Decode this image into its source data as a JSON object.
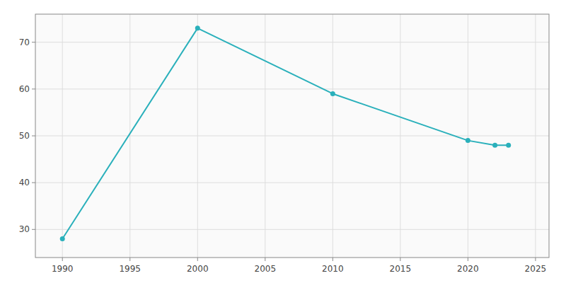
{
  "chart_data": {
    "type": "line",
    "x": [
      1990,
      2000,
      2010,
      2020,
      2022,
      2023
    ],
    "values": [
      28,
      73,
      59,
      49,
      48,
      48
    ],
    "color": "#2ab0bb",
    "marker": "circle",
    "xlim": [
      1988,
      2026
    ],
    "ylim": [
      24,
      76
    ],
    "xticks": [
      1990,
      1995,
      2000,
      2005,
      2010,
      2015,
      2020,
      2025
    ],
    "yticks": [
      30,
      40,
      50,
      60,
      70
    ],
    "grid": true
  }
}
